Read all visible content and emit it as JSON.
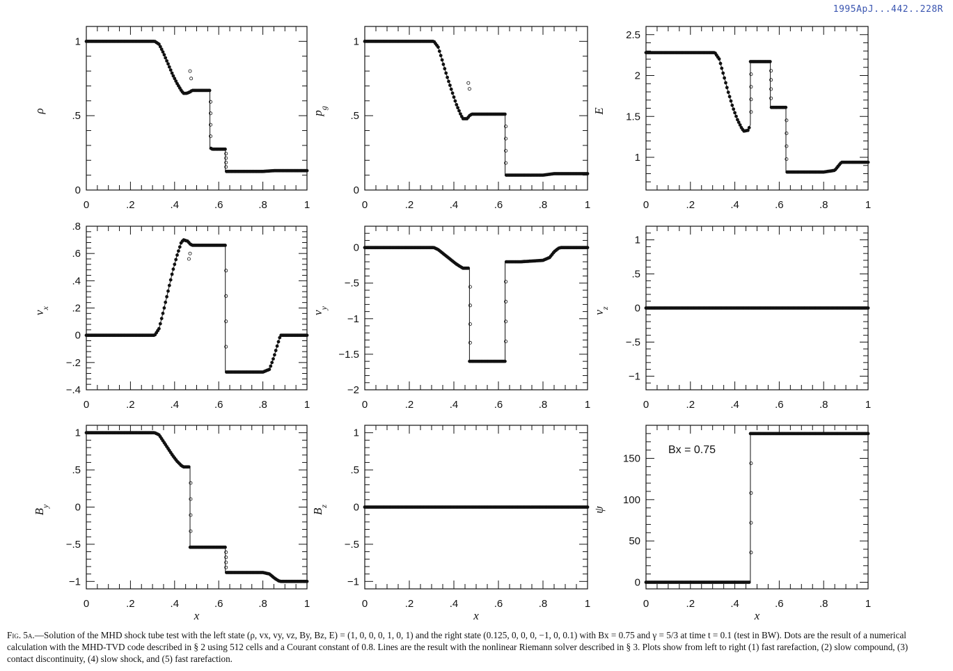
{
  "stamp": "1995ApJ...442..228R",
  "caption": {
    "fig_label": "Fig. 5a.",
    "text": "—Solution of the MHD shock tube test with the left state (ρ, vx, vy, vz, By, Bz, E) = (1, 0, 0, 0, 1, 0, 1) and the right state (0.125, 0, 0, 0, −1, 0, 0.1) with Bx = 0.75 and γ = 5/3 at time t = 0.1 (test in BW). Dots are the result of a numerical calculation with the MHD-TVD code described in § 2 using 512 cells and a Courant constant of 0.8. Lines are the result with the nonlinear Riemann solver described in § 3. Plots show from left to right (1) fast rarefaction, (2) slow compound, (3) contact discontinuity, (4) slow shock, and (5) fast rarefaction."
  },
  "chart_data": [
    {
      "type": "line",
      "ylabel": "ρ",
      "xlabel": "",
      "xlim": [
        0,
        1
      ],
      "ylim": [
        0,
        1.1
      ],
      "xticks": [
        "0",
        ".2",
        ".4",
        ".6",
        ".8",
        "1"
      ],
      "yticks": [
        {
          "v": 0,
          "t": "0"
        },
        {
          "v": 0.5,
          "t": ".5"
        },
        {
          "v": 1,
          "t": "1"
        }
      ],
      "x": [
        0,
        0.31,
        0.33,
        0.35,
        0.37,
        0.39,
        0.41,
        0.43,
        0.44,
        0.455,
        0.47,
        0.48,
        0.4801,
        0.559,
        0.56,
        0.5601,
        0.565,
        0.571,
        0.58,
        0.59,
        0.63,
        0.6301,
        0.7,
        0.8,
        0.85,
        1
      ],
      "y": [
        1,
        1,
        0.98,
        0.92,
        0.85,
        0.78,
        0.72,
        0.67,
        0.65,
        0.65,
        0.66,
        0.67,
        0.67,
        0.67,
        0.67,
        0.285,
        0.28,
        0.275,
        0.275,
        0.275,
        0.275,
        0.125,
        0.125,
        0.125,
        0.13,
        0.13
      ],
      "overshoot": [
        {
          "x": 0.47,
          "y": 0.8
        },
        {
          "x": 0.475,
          "y": 0.75
        }
      ],
      "series": [
        {
          "name": "Dots",
          "marker": "circle"
        },
        {
          "name": "Lines",
          "style": "solid"
        }
      ]
    },
    {
      "type": "line",
      "ylabel": "pg",
      "xlabel": "",
      "xlim": [
        0,
        1
      ],
      "ylim": [
        0,
        1.1
      ],
      "xticks": [
        "0",
        ".2",
        ".4",
        ".6",
        ".8",
        "1"
      ],
      "yticks": [
        {
          "v": 0,
          "t": "0"
        },
        {
          "v": 0.5,
          "t": ".5"
        },
        {
          "v": 1,
          "t": "1"
        }
      ],
      "x": [
        0,
        0.31,
        0.33,
        0.35,
        0.37,
        0.39,
        0.41,
        0.43,
        0.44,
        0.46,
        0.47,
        0.48,
        0.4801,
        0.63,
        0.6301,
        0.7,
        0.8,
        0.85,
        1
      ],
      "y": [
        1,
        1,
        0.96,
        0.86,
        0.76,
        0.67,
        0.58,
        0.51,
        0.48,
        0.48,
        0.5,
        0.51,
        0.51,
        0.51,
        0.1,
        0.1,
        0.1,
        0.11,
        0.11
      ],
      "overshoot": [
        {
          "x": 0.465,
          "y": 0.72
        },
        {
          "x": 0.47,
          "y": 0.68
        }
      ],
      "series": [
        {
          "name": "Dots",
          "marker": "circle"
        },
        {
          "name": "Lines",
          "style": "solid"
        }
      ]
    },
    {
      "type": "line",
      "ylabel": "E",
      "xlabel": "",
      "xlim": [
        0,
        1
      ],
      "ylim": [
        0.6,
        2.6
      ],
      "xticks": [
        "0",
        ".2",
        ".4",
        ".6",
        ".8",
        "1"
      ],
      "yticks": [
        {
          "v": 1,
          "t": "1"
        },
        {
          "v": 1.5,
          "t": "1.5"
        },
        {
          "v": 2,
          "t": "2"
        },
        {
          "v": 2.5,
          "t": "2.5"
        }
      ],
      "x": [
        0,
        0.31,
        0.33,
        0.35,
        0.37,
        0.39,
        0.41,
        0.43,
        0.44,
        0.46,
        0.47,
        0.4701,
        0.48,
        0.559,
        0.56,
        0.5601,
        0.63,
        0.6301,
        0.7,
        0.8,
        0.85,
        0.88,
        1
      ],
      "y": [
        2.28,
        2.28,
        2.2,
        2.0,
        1.8,
        1.62,
        1.47,
        1.36,
        1.32,
        1.33,
        1.4,
        2.17,
        2.17,
        2.17,
        2.17,
        1.61,
        1.61,
        0.82,
        0.82,
        0.82,
        0.84,
        0.94,
        0.94
      ],
      "series": [
        {
          "name": "Dots",
          "marker": "circle"
        },
        {
          "name": "Lines",
          "style": "solid"
        }
      ]
    },
    {
      "type": "line",
      "ylabel": "vx",
      "xlabel": "",
      "xlim": [
        0,
        1
      ],
      "ylim": [
        -0.4,
        0.8
      ],
      "xticks": [
        "0",
        ".2",
        ".4",
        ".6",
        ".8",
        "1"
      ],
      "yticks": [
        {
          "v": -0.4,
          "t": "−.4"
        },
        {
          "v": -0.2,
          "t": "−.2"
        },
        {
          "v": 0,
          "t": "0"
        },
        {
          "v": 0.2,
          "t": ".2"
        },
        {
          "v": 0.4,
          "t": ".4"
        },
        {
          "v": 0.6,
          "t": ".6"
        },
        {
          "v": 0.8,
          "t": ".8"
        }
      ],
      "x": [
        0,
        0.31,
        0.33,
        0.35,
        0.37,
        0.39,
        0.41,
        0.43,
        0.44,
        0.46,
        0.47,
        0.48,
        0.4801,
        0.63,
        0.6301,
        0.7,
        0.8,
        0.83,
        0.85,
        0.87,
        0.88,
        1
      ],
      "y": [
        0,
        0,
        0.05,
        0.18,
        0.32,
        0.46,
        0.58,
        0.68,
        0.7,
        0.69,
        0.67,
        0.66,
        0.66,
        0.66,
        -0.27,
        -0.27,
        -0.27,
        -0.25,
        -0.16,
        -0.05,
        0,
        0
      ],
      "overshoot": [
        {
          "x": 0.465,
          "y": 0.56
        },
        {
          "x": 0.47,
          "y": 0.6
        }
      ],
      "series": [
        {
          "name": "Dots",
          "marker": "circle"
        },
        {
          "name": "Lines",
          "style": "solid"
        }
      ]
    },
    {
      "type": "line",
      "ylabel": "vy",
      "xlabel": "",
      "xlim": [
        0,
        1
      ],
      "ylim": [
        -2,
        0.3
      ],
      "xticks": [
        "0",
        ".2",
        ".4",
        ".6",
        ".8",
        "1"
      ],
      "yticks": [
        {
          "v": -2,
          "t": "−2"
        },
        {
          "v": -1.5,
          "t": "−1.5"
        },
        {
          "v": -1,
          "t": "−1"
        },
        {
          "v": -0.5,
          "t": "−.5"
        },
        {
          "v": 0,
          "t": "0"
        }
      ],
      "x": [
        0,
        0.31,
        0.33,
        0.35,
        0.37,
        0.39,
        0.41,
        0.43,
        0.44,
        0.46,
        0.47,
        0.4701,
        0.48,
        0.63,
        0.6301,
        0.7,
        0.8,
        0.83,
        0.85,
        0.87,
        0.88,
        1
      ],
      "y": [
        0,
        0,
        -0.03,
        -0.08,
        -0.13,
        -0.18,
        -0.23,
        -0.27,
        -0.29,
        -0.29,
        -0.29,
        -1.6,
        -1.6,
        -1.6,
        -0.2,
        -0.2,
        -0.18,
        -0.14,
        -0.06,
        -0.01,
        0,
        0
      ],
      "series": [
        {
          "name": "Dots",
          "marker": "circle"
        },
        {
          "name": "Lines",
          "style": "solid"
        }
      ]
    },
    {
      "type": "line",
      "ylabel": "vz",
      "xlabel": "",
      "xlim": [
        0,
        1
      ],
      "ylim": [
        -1.2,
        1.2
      ],
      "xticks": [
        "0",
        ".2",
        ".4",
        ".6",
        ".8",
        "1"
      ],
      "yticks": [
        {
          "v": -1,
          "t": "−1"
        },
        {
          "v": -0.5,
          "t": "−.5"
        },
        {
          "v": 0,
          "t": "0"
        },
        {
          "v": 0.5,
          "t": ".5"
        },
        {
          "v": 1,
          "t": "1"
        }
      ],
      "x": [
        0,
        1
      ],
      "y": [
        0,
        0
      ],
      "series": [
        {
          "name": "Dots",
          "marker": "circle"
        },
        {
          "name": "Lines",
          "style": "solid"
        }
      ]
    },
    {
      "type": "line",
      "ylabel": "By",
      "xlabel": "x",
      "xlim": [
        0,
        1
      ],
      "ylim": [
        -1.1,
        1.1
      ],
      "xticks": [
        "0",
        ".2",
        ".4",
        ".6",
        ".8",
        "1"
      ],
      "yticks": [
        {
          "v": -1,
          "t": "−1"
        },
        {
          "v": -0.5,
          "t": "−.5"
        },
        {
          "v": 0,
          "t": "0"
        },
        {
          "v": 0.5,
          "t": ".5"
        },
        {
          "v": 1,
          "t": "1"
        }
      ],
      "x": [
        0,
        0.31,
        0.33,
        0.35,
        0.37,
        0.39,
        0.41,
        0.43,
        0.44,
        0.46,
        0.47,
        0.4701,
        0.48,
        0.49,
        0.63,
        0.6301,
        0.7,
        0.8,
        0.83,
        0.85,
        0.87,
        0.88,
        1
      ],
      "y": [
        1,
        1,
        0.97,
        0.88,
        0.79,
        0.7,
        0.62,
        0.56,
        0.54,
        0.54,
        0.54,
        -0.54,
        -0.54,
        -0.54,
        -0.54,
        -0.88,
        -0.88,
        -0.88,
        -0.9,
        -0.95,
        -0.99,
        -1,
        -1
      ],
      "series": [
        {
          "name": "Dots",
          "marker": "circle"
        },
        {
          "name": "Lines",
          "style": "solid"
        }
      ]
    },
    {
      "type": "line",
      "ylabel": "Bz",
      "xlabel": "x",
      "xlim": [
        0,
        1
      ],
      "ylim": [
        -1.1,
        1.1
      ],
      "xticks": [
        "0",
        ".2",
        ".4",
        ".6",
        ".8",
        "1"
      ],
      "yticks": [
        {
          "v": -1,
          "t": "−1"
        },
        {
          "v": -0.5,
          "t": "−.5"
        },
        {
          "v": 0,
          "t": "0"
        },
        {
          "v": 0.5,
          "t": ".5"
        },
        {
          "v": 1,
          "t": "1"
        }
      ],
      "x": [
        0,
        1
      ],
      "y": [
        0,
        0
      ],
      "series": [
        {
          "name": "Dots",
          "marker": "circle"
        },
        {
          "name": "Lines",
          "style": "solid"
        }
      ]
    },
    {
      "type": "line",
      "ylabel": "ψ",
      "xlabel": "x",
      "xlim": [
        0,
        1
      ],
      "ylim": [
        -8,
        190
      ],
      "xticks": [
        "0",
        ".2",
        ".4",
        ".6",
        ".8",
        "1"
      ],
      "yticks": [
        {
          "v": 0,
          "t": "0"
        },
        {
          "v": 50,
          "t": "50"
        },
        {
          "v": 100,
          "t": "100"
        },
        {
          "v": 150,
          "t": "150"
        }
      ],
      "x": [
        0,
        0.47,
        0.4701,
        1
      ],
      "y": [
        0,
        0,
        180,
        180
      ],
      "annotation": "Bx = 0.75",
      "series": [
        {
          "name": "Dots",
          "marker": "circle"
        },
        {
          "name": "Lines",
          "style": "solid"
        }
      ]
    }
  ]
}
